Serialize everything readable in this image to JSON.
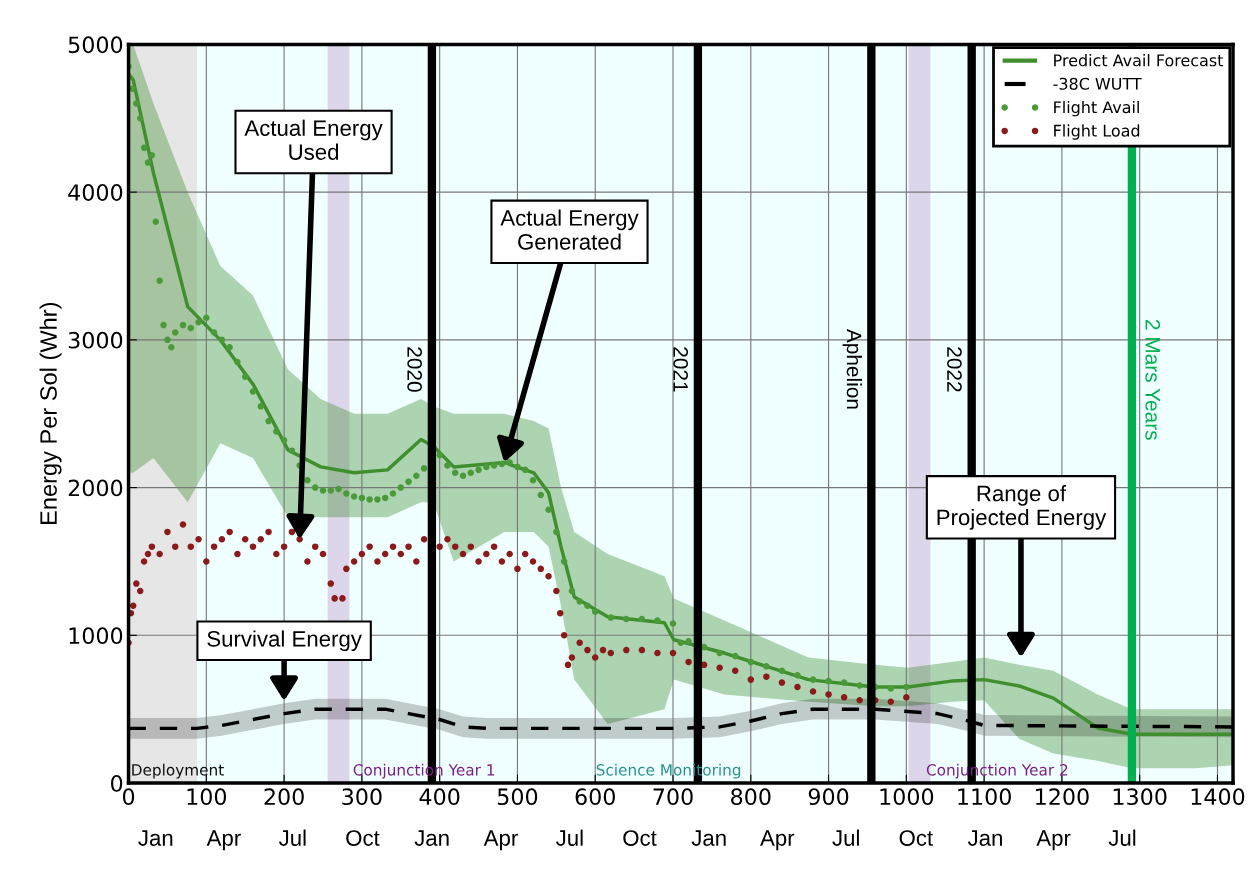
{
  "chart_data": {
    "type": "line",
    "ylabel": "Energy Per Sol (Whr)",
    "xlim": [
      0,
      1420
    ],
    "ylim": [
      0,
      5000
    ],
    "xticks": [
      0,
      100,
      200,
      300,
      400,
      500,
      600,
      700,
      800,
      900,
      1000,
      1100,
      1200,
      1300,
      1400
    ],
    "yticks": [
      0,
      1000,
      2000,
      3000,
      4000,
      5000
    ],
    "x2lim": [
      "2018-11-26",
      "2022-11-24"
    ],
    "x2ticks": [
      {
        "value": "2019-01-01",
        "label": "Jan"
      },
      {
        "value": "2019-04-01",
        "label": "Apr"
      },
      {
        "value": "2019-07-01",
        "label": "Jul"
      },
      {
        "value": "2019-10-01",
        "label": "Oct"
      },
      {
        "value": "2020-01-01",
        "label": "Jan"
      },
      {
        "value": "2020-04-01",
        "label": "Apr"
      },
      {
        "value": "2020-07-01",
        "label": "Jul"
      },
      {
        "value": "2020-10-01",
        "label": "Oct"
      },
      {
        "value": "2021-01-01",
        "label": "Jan"
      },
      {
        "value": "2021-04-01",
        "label": "Apr"
      },
      {
        "value": "2021-07-01",
        "label": "Jul"
      },
      {
        "value": "2021-10-01",
        "label": "Oct"
      },
      {
        "value": "2022-01-01",
        "label": "Jan"
      },
      {
        "value": "2022-04-01",
        "label": "Apr"
      },
      {
        "value": "2022-07-01",
        "label": "Jul"
      }
    ],
    "grid": true,
    "legend": "top right",
    "series": [
      {
        "name": "Predict Avail Forecast",
        "color": "#3f8f2f",
        "line_style": "solid",
        "marker": "none",
        "x": [
          0,
          6,
          32,
          76,
          118,
          160,
          205,
          247,
          290,
          333,
          376,
          392,
          418,
          483,
          521,
          540,
          556,
          573,
          616,
          689,
          701,
          766,
          874,
          959,
          1002,
          1058,
          1100,
          1145,
          1189,
          1246,
          1290,
          1372,
          1420
        ],
        "values": [
          4800,
          4760,
          4130,
          3225,
          3000,
          2700,
          2255,
          2140,
          2100,
          2120,
          2325,
          2280,
          2140,
          2170,
          2100,
          1965,
          1600,
          1260,
          1125,
          1085,
          970,
          880,
          700,
          650,
          650,
          690,
          700,
          657,
          575,
          373,
          330,
          330,
          330
        ],
        "lower": [
          2100,
          2100,
          2200,
          1900,
          2300,
          2200,
          1800,
          1800,
          1800,
          1800,
          1900,
          1900,
          1500,
          1700,
          1700,
          1600,
          1200,
          700,
          400,
          500,
          700,
          600,
          550,
          520,
          520,
          550,
          560,
          300,
          200,
          150,
          100,
          100,
          120
        ],
        "upper": [
          5000,
          5000,
          4600,
          4000,
          3500,
          3300,
          2800,
          2600,
          2500,
          2500,
          2600,
          2550,
          2500,
          2500,
          2450,
          2400,
          2000,
          1700,
          1550,
          1400,
          1250,
          1100,
          850,
          800,
          780,
          820,
          850,
          800,
          760,
          600,
          500,
          500,
          500
        ]
      },
      {
        "name": "-38C WUTT",
        "color": "#000000",
        "line_style": "dashed",
        "marker": "none",
        "x": [
          0,
          88,
          120,
          160,
          200,
          240,
          280,
          330,
          360,
          400,
          430,
          460,
          700,
          760,
          800,
          840,
          880,
          960,
          1040,
          1080,
          1100,
          1420
        ],
        "values": [
          370,
          370,
          390,
          430,
          470,
          500,
          500,
          500,
          470,
          430,
          380,
          370,
          370,
          380,
          420,
          470,
          500,
          500,
          470,
          420,
          390,
          380
        ],
        "lower": [
          300,
          300,
          320,
          360,
          400,
          430,
          430,
          430,
          400,
          360,
          310,
          300,
          300,
          310,
          350,
          400,
          430,
          430,
          400,
          350,
          320,
          310
        ],
        "upper": [
          440,
          440,
          460,
          500,
          540,
          570,
          570,
          570,
          540,
          500,
          450,
          440,
          440,
          450,
          490,
          540,
          570,
          570,
          540,
          490,
          460,
          450
        ]
      },
      {
        "name": "Flight Avail",
        "type": "scatter",
        "color": "#4a9a3a",
        "marker": "circle",
        "x": [
          0,
          5,
          10,
          15,
          20,
          25,
          30,
          35,
          40,
          45,
          50,
          55,
          60,
          70,
          80,
          90,
          100,
          110,
          120,
          130,
          140,
          150,
          160,
          170,
          180,
          190,
          200,
          210,
          220,
          230,
          240,
          250,
          260,
          270,
          280,
          290,
          300,
          310,
          320,
          330,
          340,
          350,
          360,
          370,
          380,
          390,
          400,
          410,
          420,
          430,
          440,
          450,
          460,
          470,
          480,
          490,
          500,
          510,
          520,
          530,
          540,
          550,
          560,
          570,
          580,
          590,
          600,
          620,
          640,
          660,
          680,
          700,
          710,
          720,
          740,
          760,
          780,
          800,
          820,
          840,
          860,
          880,
          900,
          920,
          940,
          960,
          980,
          1000
        ],
        "values": [
          4850,
          4700,
          4600,
          4500,
          4300,
          4200,
          4250,
          3800,
          3400,
          3100,
          3000,
          2950,
          3050,
          3100,
          3080,
          3120,
          3150,
          3050,
          3000,
          2950,
          2850,
          2750,
          2650,
          2550,
          2450,
          2380,
          2320,
          2250,
          2150,
          2050,
          2000,
          1980,
          1980,
          1990,
          1960,
          1940,
          1930,
          1920,
          1920,
          1930,
          1960,
          2000,
          2040,
          2080,
          2130,
          null,
          2220,
          2150,
          2100,
          2080,
          2100,
          2120,
          2140,
          2150,
          2160,
          2170,
          2140,
          2120,
          2050,
          1950,
          1850,
          1700,
          1500,
          1300,
          1230,
          1200,
          1160,
          1120,
          1110,
          1110,
          1100,
          1080,
          950,
          960,
          920,
          880,
          860,
          820,
          790,
          760,
          730,
          700,
          690,
          680,
          660,
          650,
          640,
          650
        ]
      },
      {
        "name": "Flight Load",
        "type": "scatter",
        "color": "#8b1a1a",
        "marker": "circle",
        "x": [
          0,
          3,
          6,
          10,
          15,
          20,
          25,
          30,
          40,
          50,
          60,
          70,
          80,
          90,
          100,
          110,
          120,
          130,
          140,
          150,
          160,
          170,
          180,
          190,
          200,
          210,
          220,
          230,
          240,
          250,
          260,
          265,
          275,
          280,
          290,
          300,
          310,
          320,
          330,
          340,
          350,
          360,
          370,
          380,
          390,
          400,
          410,
          420,
          430,
          440,
          450,
          460,
          470,
          480,
          490,
          500,
          510,
          520,
          530,
          540,
          550,
          555,
          560,
          565,
          570,
          580,
          590,
          600,
          610,
          620,
          640,
          660,
          680,
          700,
          720,
          740,
          760,
          780,
          800,
          820,
          840,
          860,
          880,
          900,
          920,
          940,
          960,
          980,
          1000
        ],
        "values": [
          950,
          1150,
          1200,
          1350,
          1300,
          1500,
          1550,
          1600,
          1550,
          1700,
          1600,
          1750,
          1600,
          1650,
          1500,
          1600,
          1650,
          1700,
          1550,
          1650,
          1600,
          1650,
          1700,
          1550,
          1600,
          1700,
          1650,
          1500,
          1600,
          1550,
          1350,
          1250,
          1250,
          1450,
          1500,
          1550,
          1600,
          1500,
          1550,
          1600,
          1550,
          1600,
          1500,
          1650,
          null,
          1600,
          1650,
          1600,
          1550,
          1600,
          1500,
          1550,
          1600,
          1500,
          1550,
          1450,
          1550,
          1500,
          1450,
          1400,
          1300,
          1150,
          1000,
          800,
          850,
          950,
          900,
          850,
          900,
          880,
          900,
          900,
          880,
          880,
          820,
          800,
          780,
          760,
          700,
          720,
          680,
          650,
          620,
          600,
          580,
          560,
          560,
          550,
          580
        ]
      }
    ],
    "bands": [
      {
        "axis": "x",
        "from": 0,
        "to": 88,
        "color": "#e6e6e6"
      },
      {
        "axis": "x",
        "from": 88,
        "to": 1420,
        "color": "#f0ffff"
      },
      {
        "axis": "x",
        "from": 256,
        "to": 284,
        "color": "#ddd5ea"
      },
      {
        "axis": "x",
        "from": 1003,
        "to": 1031,
        "color": "#ddd5ea"
      }
    ],
    "ref_lines": [
      {
        "axis": "x",
        "value": 390,
        "color": "#000000"
      },
      {
        "axis": "x",
        "value": 732,
        "color": "#000000"
      },
      {
        "axis": "x",
        "value": 955,
        "label": "Aphelion",
        "color": "#000000"
      },
      {
        "axis": "x",
        "value": 1084,
        "color": "#000000"
      },
      {
        "axis": "x",
        "value": 1290,
        "label": "2 Mars Years",
        "color": "#00b050"
      }
    ],
    "annotations": [
      {
        "text": "Actual Energy\nUsed",
        "x": 220,
        "y": 1650
      },
      {
        "text": "Actual Energy\nGenerated",
        "x": 483,
        "y": 2170
      },
      {
        "text": "Survival Energy",
        "x": 200,
        "y": 470
      },
      "Range of\nProjected Energy",
      "Deployment",
      "Conjunction Year 1",
      "Science Monitoring",
      "Conjunction Year 2",
      {
        "text": "2020",
        "x": 390,
        "y": 2800
      },
      {
        "text": "2021",
        "x": 732,
        "y": 2800
      },
      {
        "text": "2022",
        "x": 1084,
        "y": 2800
      }
    ]
  }
}
